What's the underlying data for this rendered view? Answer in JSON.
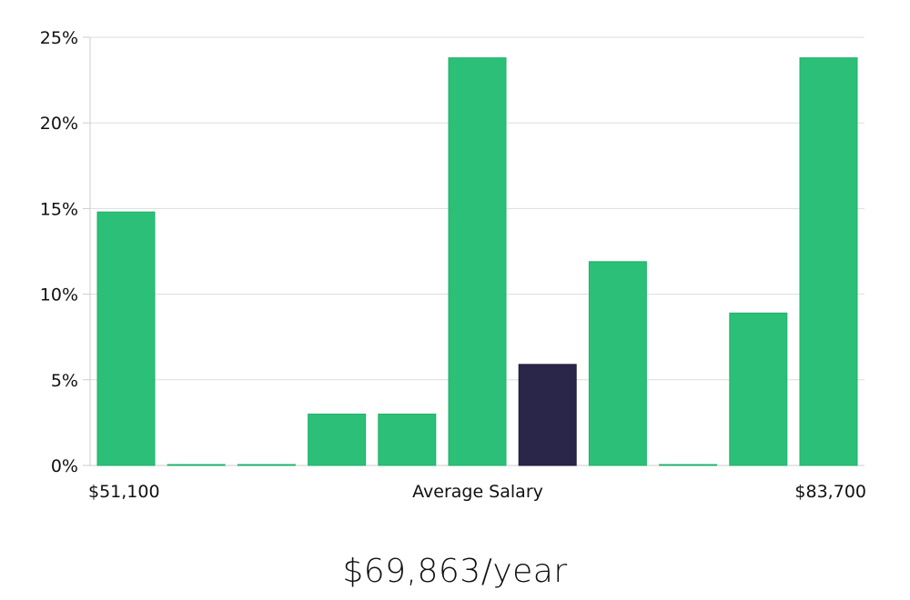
{
  "chart_data": {
    "type": "bar",
    "y_ticks": [
      "0%",
      "5%",
      "10%",
      "15%",
      "20%",
      "25%"
    ],
    "ylim": [
      0,
      25
    ],
    "values": [
      14.8,
      0,
      0,
      3.0,
      3.0,
      23.8,
      5.9,
      11.9,
      0,
      8.9,
      23.8
    ],
    "highlight_index": 6,
    "x_min_label": "$51,100",
    "x_center_label": "Average Salary",
    "x_max_label": "$83,700",
    "grid": true,
    "colors": {
      "bar": "#2bbf78",
      "highlight": "#29264a",
      "grid": "#dddddd",
      "axis": "#cccccc"
    }
  },
  "salary": {
    "value": "$69,863/year"
  }
}
